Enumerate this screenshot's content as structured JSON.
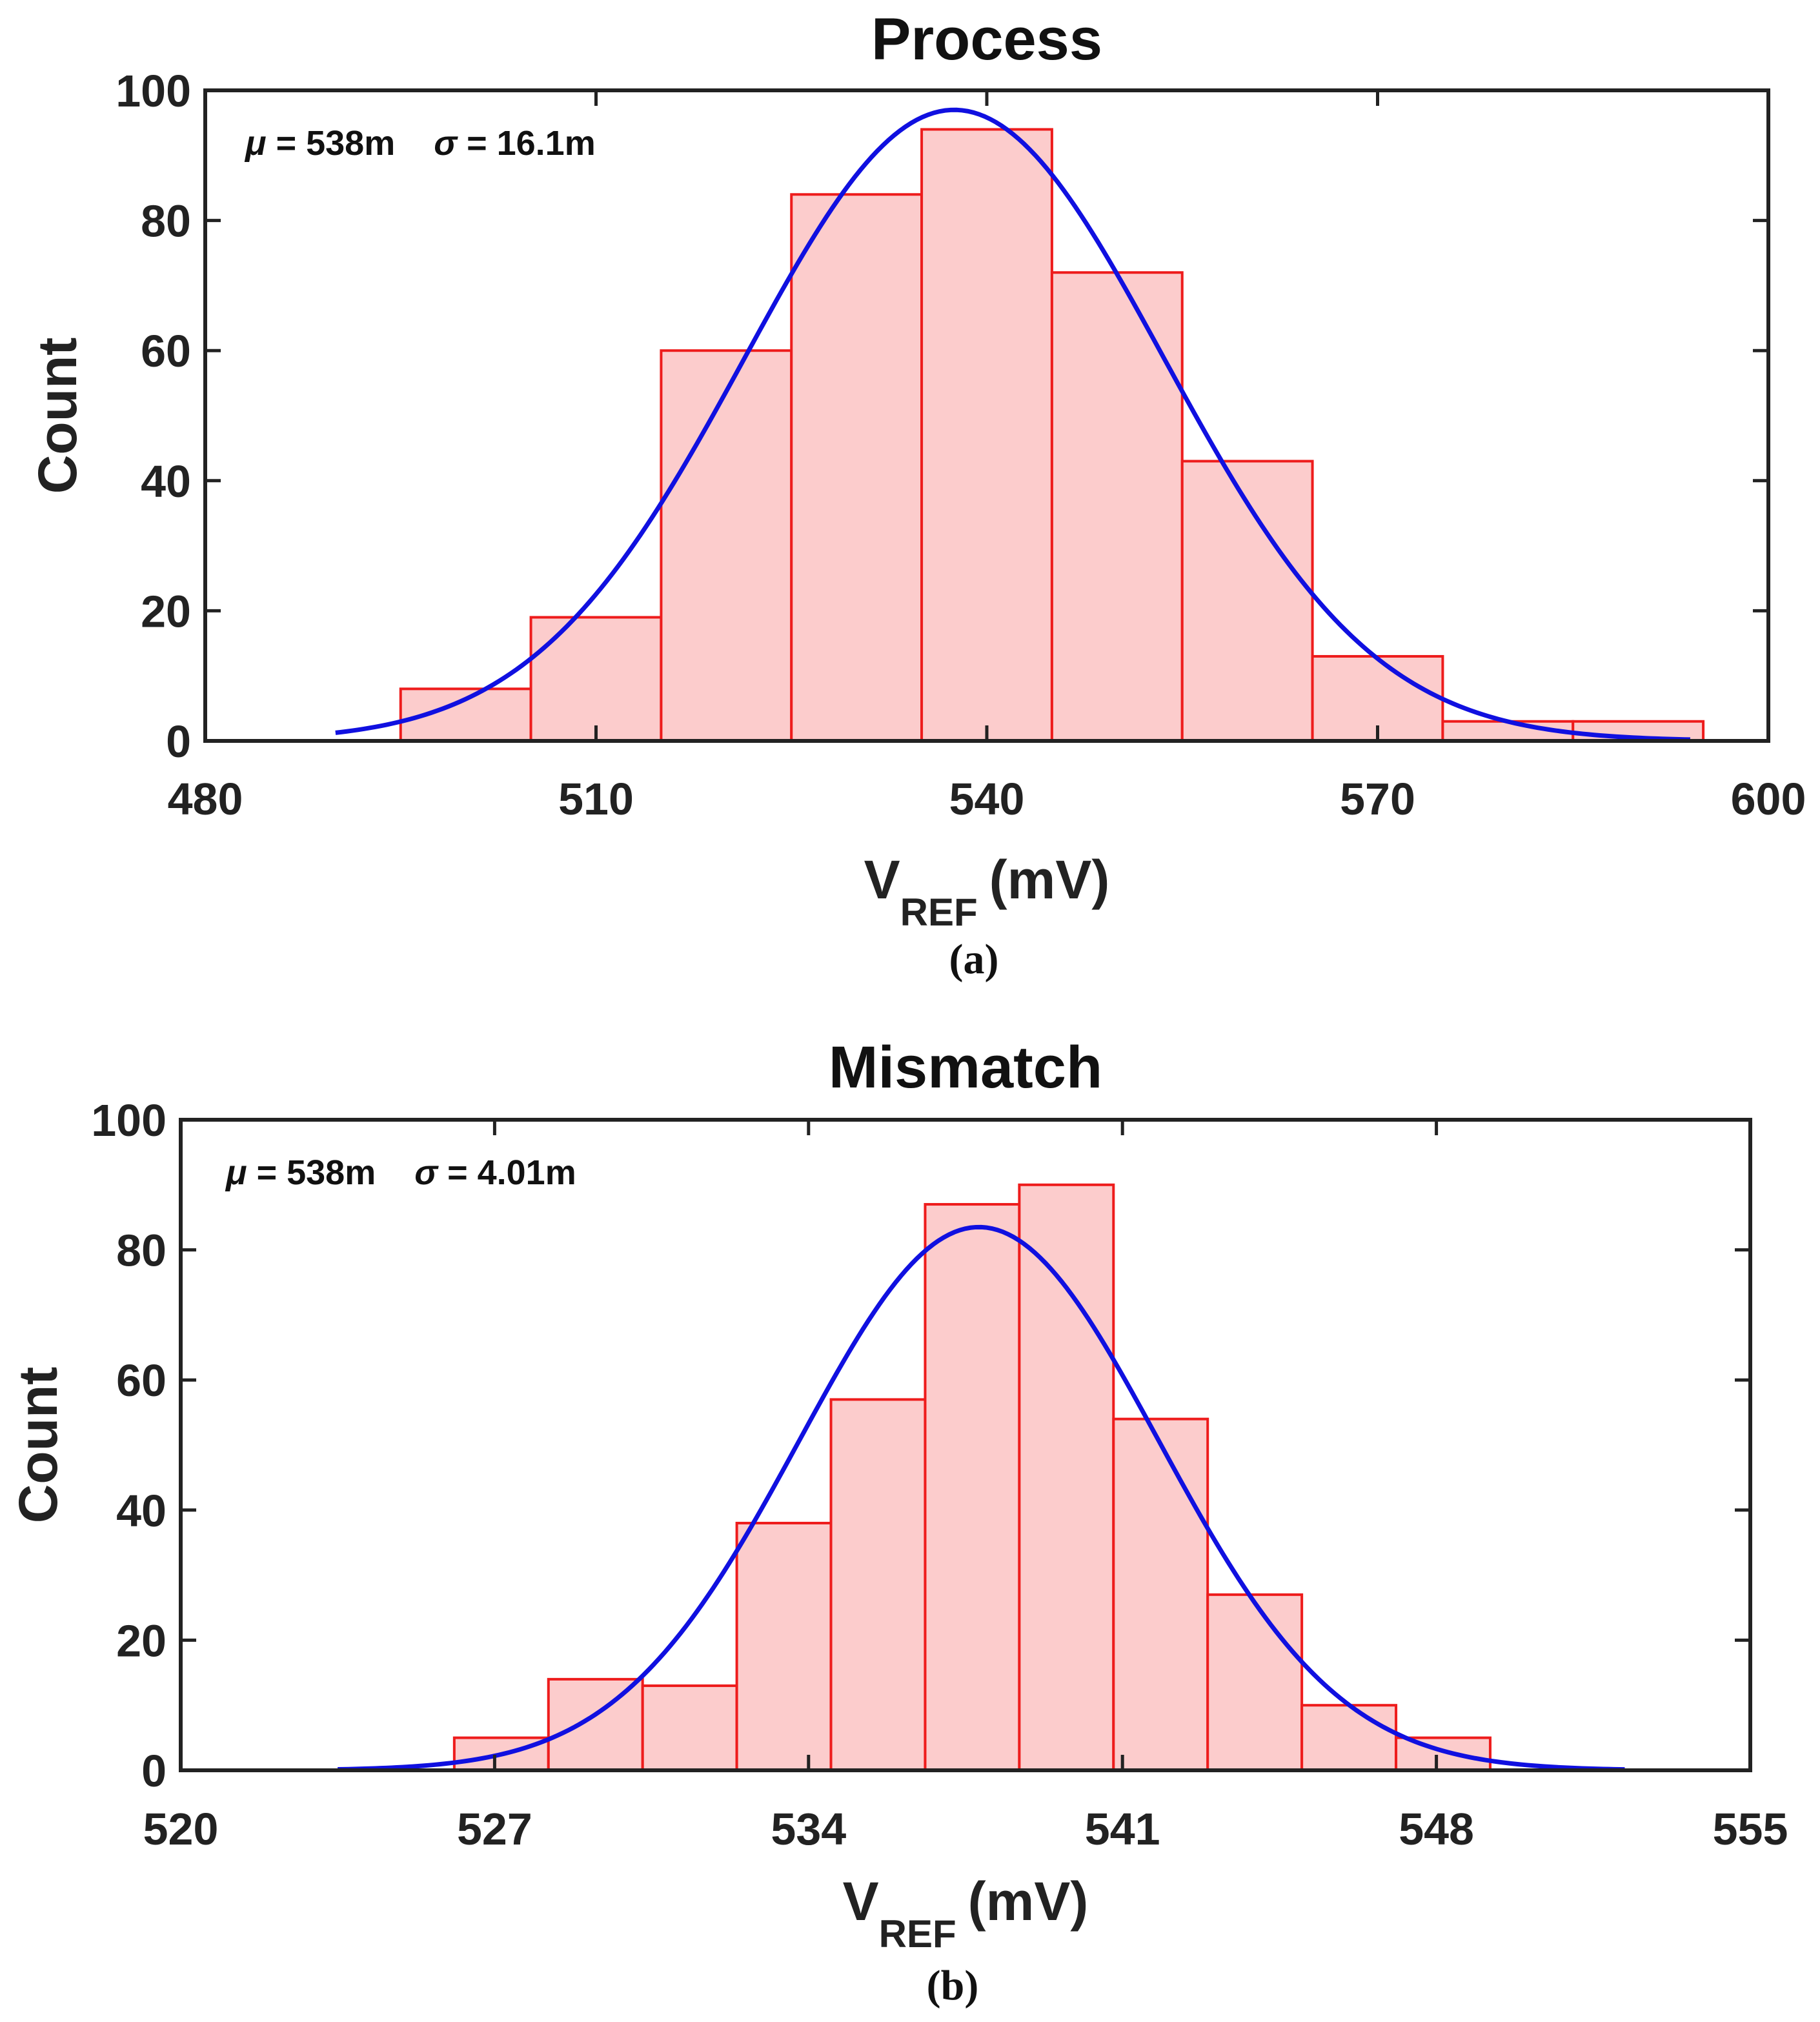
{
  "colors": {
    "bar_fill": "#fccccc",
    "bar_edge": "#ee1c1c",
    "fit_line": "#1010e0",
    "axis": "#222222"
  },
  "chart_data": [
    {
      "type": "bar",
      "subtype": "histogram_with_normal_fit",
      "caption": "(a)",
      "title": "Process",
      "xlabel_main": "V",
      "xlabel_sub": "REF",
      "xlabel_unit": "(mV)",
      "ylabel": "Count",
      "stats": {
        "mu_symbol": "μ",
        "mu_text": " = 538m",
        "sigma_symbol": "σ",
        "sigma_text": " = 16.1m"
      },
      "xlim": [
        480,
        600
      ],
      "ylim": [
        0,
        100
      ],
      "xticks": [
        480,
        510,
        540,
        570,
        600
      ],
      "yticks": [
        0,
        20,
        40,
        60,
        80,
        100
      ],
      "bin_edges": [
        495,
        505,
        515,
        525,
        535,
        545,
        555,
        565,
        575,
        585,
        595
      ],
      "values": [
        8,
        19,
        60,
        84,
        94,
        72,
        43,
        13,
        3,
        3
      ],
      "fit": {
        "mean": 537.5,
        "sigma": 16.1,
        "peak": 97,
        "x_range": [
          490,
          594
        ]
      }
    },
    {
      "type": "bar",
      "subtype": "histogram_with_normal_fit",
      "caption": "(b)",
      "title": "Mismatch",
      "xlabel_main": "V",
      "xlabel_sub": "REF",
      "xlabel_unit": "(mV)",
      "ylabel": "Count",
      "stats": {
        "mu_symbol": "μ",
        "mu_text": " = 538m",
        "sigma_symbol": "σ",
        "sigma_text": " = 4.01m"
      },
      "xlim": [
        520,
        555
      ],
      "ylim": [
        0,
        100
      ],
      "xticks": [
        520,
        527,
        534,
        541,
        548,
        555
      ],
      "yticks": [
        0,
        20,
        40,
        60,
        80,
        100
      ],
      "bin_edges": [
        526.1,
        528.2,
        530.3,
        532.4,
        534.5,
        536.6,
        538.7,
        540.8,
        542.9,
        545.0,
        547.1,
        549.2
      ],
      "values": [
        5,
        14,
        13,
        38,
        57,
        87,
        90,
        54,
        27,
        10,
        5
      ],
      "fit": {
        "mean": 537.8,
        "sigma": 4.01,
        "peak": 83.5,
        "x_range": [
          523.5,
          552.2
        ]
      }
    }
  ]
}
